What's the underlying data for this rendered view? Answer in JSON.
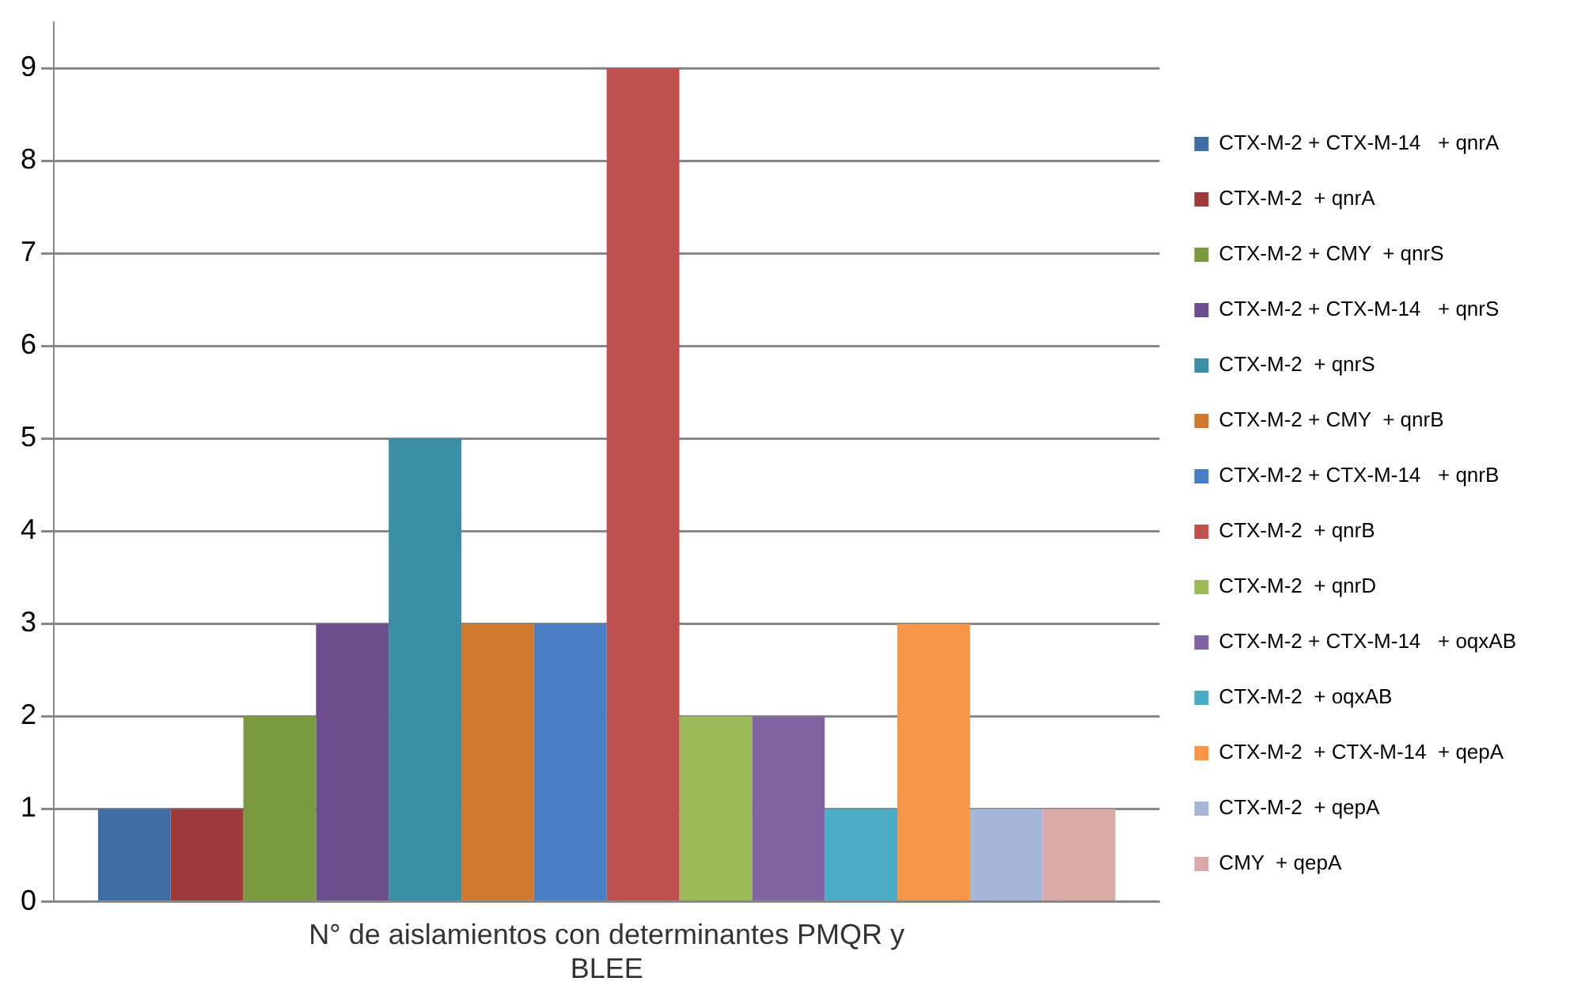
{
  "chart_data": {
    "type": "bar",
    "categories": [
      "N° de aislamientos con determinantes PMQR y BLEE"
    ],
    "series": [
      {
        "name": "CTX-M-2 + CTX-M-14   + qnrA",
        "color": "#3f6ea5",
        "values": [
          1
        ]
      },
      {
        "name": "CTX-M-2  + qnrA",
        "color": "#a0393a",
        "values": [
          1
        ]
      },
      {
        "name": "CTX-M-2 + CMY  + qnrS",
        "color": "#7a9a40",
        "values": [
          2
        ]
      },
      {
        "name": "CTX-M-2 + CTX-M-14   + qnrS",
        "color": "#6a4f8c",
        "values": [
          3
        ]
      },
      {
        "name": "CTX-M-2  + qnrS",
        "color": "#3a8ea5",
        "values": [
          5
        ]
      },
      {
        "name": "CTX-M-2 + CMY  + qnrB",
        "color": "#d07a30",
        "values": [
          3
        ]
      },
      {
        "name": "CTX-M-2 + CTX-M-14   + qnrB",
        "color": "#4a7ec4",
        "values": [
          3
        ]
      },
      {
        "name": "CTX-M-2  + qnrB",
        "color": "#c0504d",
        "values": [
          9
        ]
      },
      {
        "name": "CTX-M-2  + qnrD",
        "color": "#9bbb59",
        "values": [
          2
        ]
      },
      {
        "name": "CTX-M-2 + CTX-M-14   + oqxAB",
        "color": "#8064a2",
        "values": [
          2
        ]
      },
      {
        "name": "CTX-M-2  + oqxAB",
        "color": "#4bacc6",
        "values": [
          1
        ]
      },
      {
        "name": "CTX-M-2  + CTX-M-14  + qepA",
        "color": "#f79646",
        "values": [
          3
        ]
      },
      {
        "name": "CTX-M-2  + qepA",
        "color": "#a5b6d8",
        "values": [
          1
        ]
      },
      {
        "name": "CMY  + qepA",
        "color": "#d9a9a8",
        "values": [
          1
        ]
      }
    ],
    "ylim": [
      0,
      9.5
    ],
    "yticks": [
      0,
      1,
      2,
      3,
      4,
      5,
      6,
      7,
      8,
      9
    ],
    "grid": "y",
    "legend": "right"
  }
}
